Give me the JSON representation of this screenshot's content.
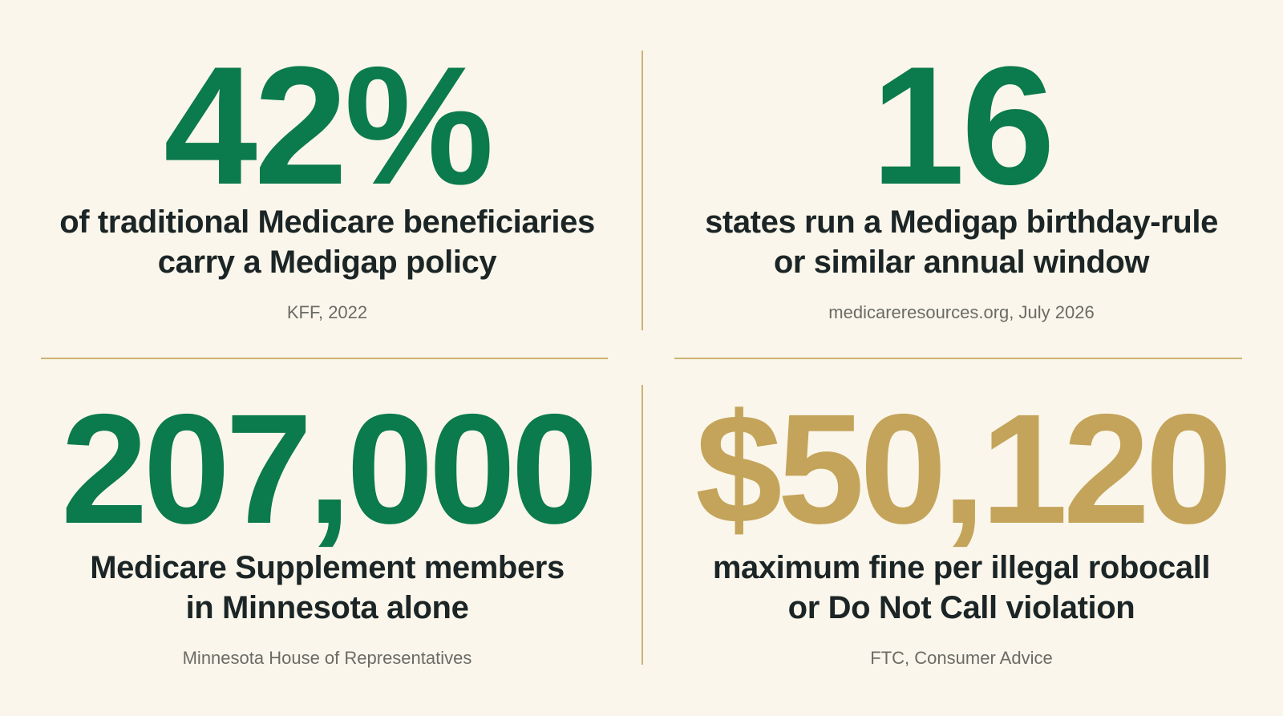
{
  "stats": [
    {
      "value": "42%",
      "color": "#0b7a4c",
      "description": [
        "of traditional Medicare beneficiaries",
        "carry a Medigap policy"
      ],
      "source": "KFF, 2022"
    },
    {
      "value": "16",
      "color": "#0b7a4c",
      "description": [
        "states run a Medigap birthday-rule",
        "or similar annual window"
      ],
      "source": "medicareresources.org, July 2026"
    },
    {
      "value": "207,000",
      "color": "#0b7a4c",
      "description": [
        "Medicare Supplement members",
        "in Minnesota alone"
      ],
      "source": "Minnesota House of Representatives"
    },
    {
      "value": "$50,120",
      "color": "#c4a45a",
      "description": [
        "maximum fine per illegal robocall",
        "or Do Not Call violation"
      ],
      "source": "FTC, Consumer Advice"
    }
  ]
}
